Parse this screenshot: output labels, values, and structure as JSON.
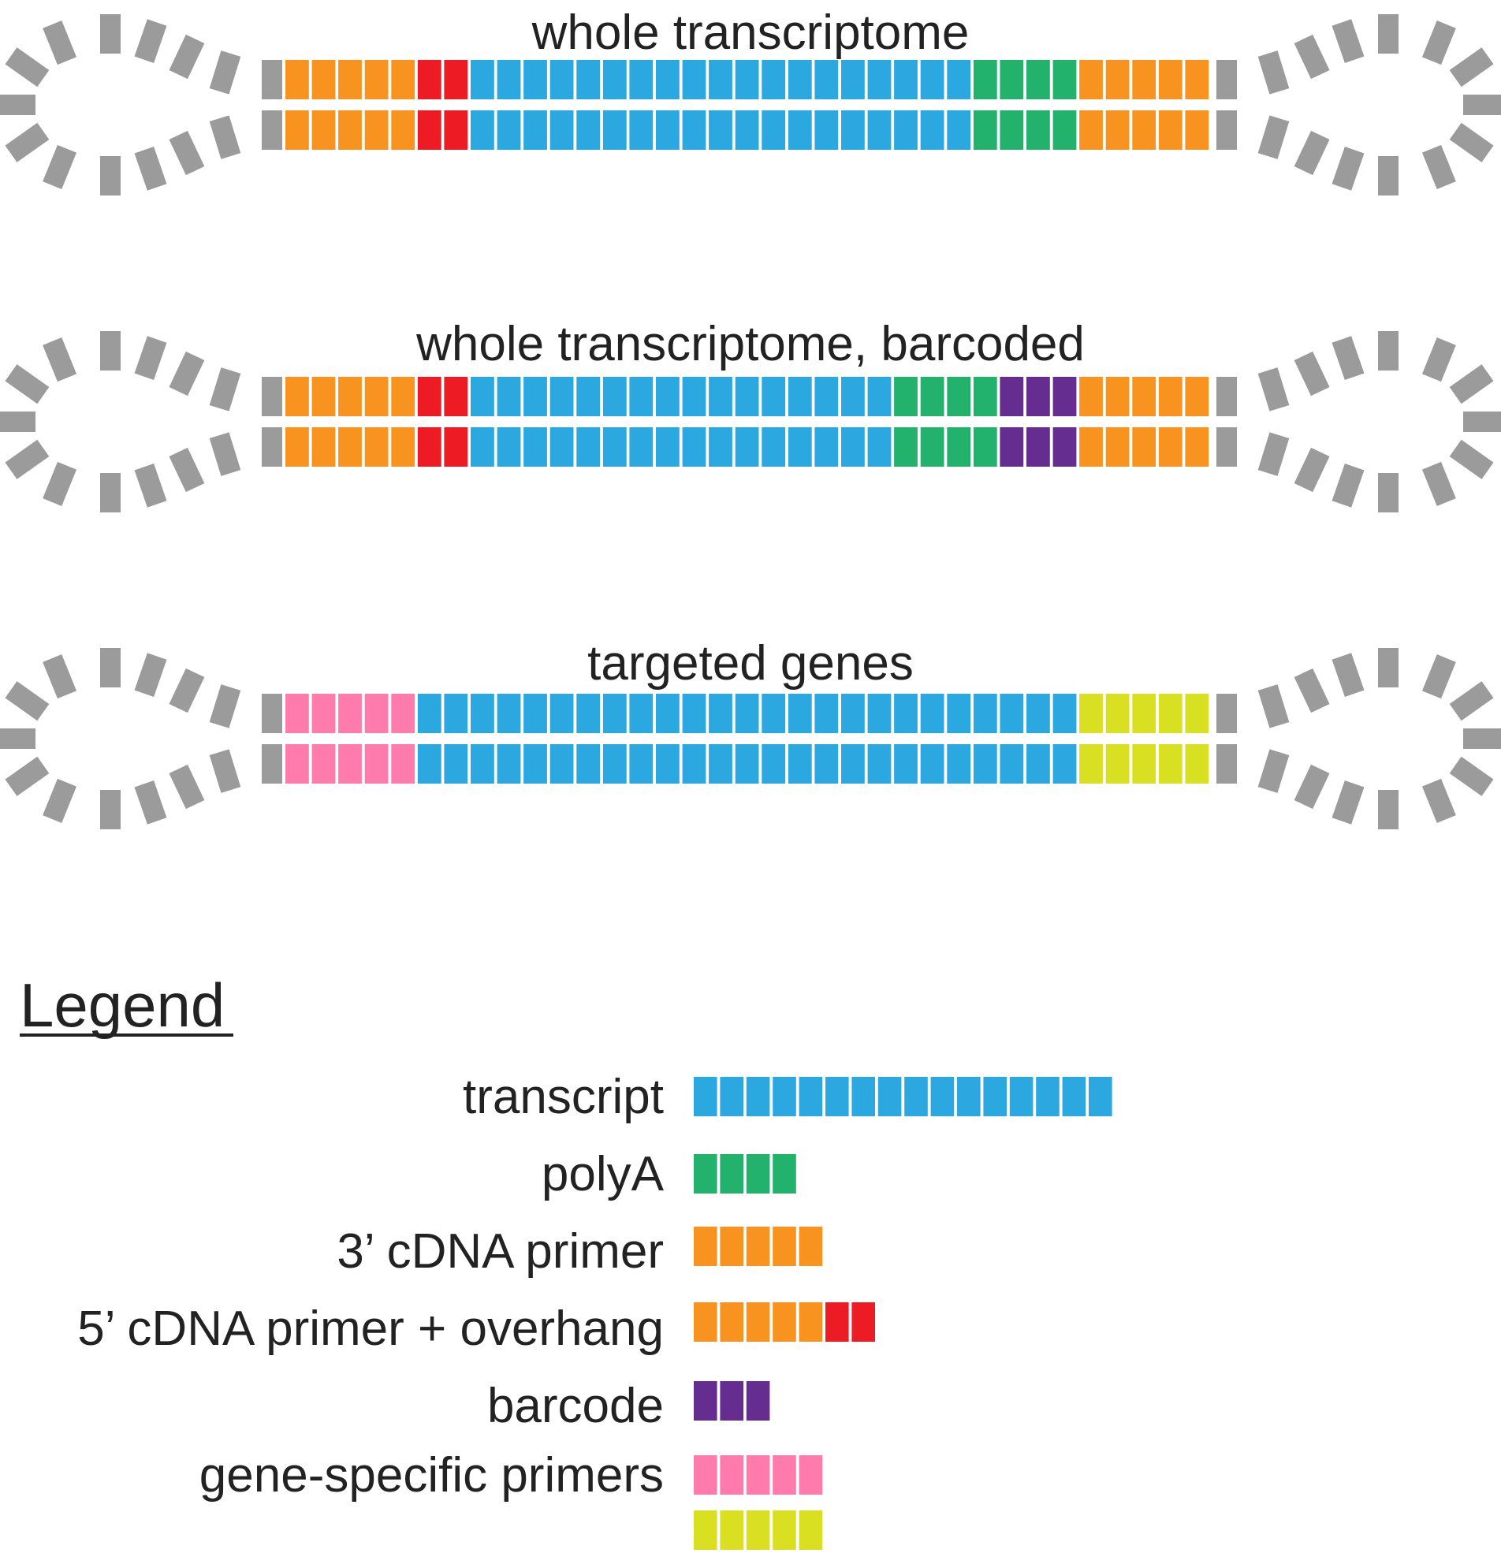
{
  "colors": {
    "backbone": "#9b9b9b",
    "transcript": "#2ba8e0",
    "polyA": "#22b26b",
    "cdna_primer": "#f7931e",
    "overhang": "#ed1c24",
    "barcode": "#662d91",
    "gene_primer_5": "#ff7bac",
    "gene_primer_3": "#d9e021"
  },
  "constructs": [
    {
      "title": "whole transcriptome",
      "segments": [
        {
          "type": "cdna_primer",
          "units": 5
        },
        {
          "type": "overhang",
          "units": 2
        },
        {
          "type": "transcript",
          "units": 19
        },
        {
          "type": "polyA",
          "units": 4
        },
        {
          "type": "cdna_primer",
          "units": 5
        }
      ]
    },
    {
      "title": "whole transcriptome, barcoded",
      "segments": [
        {
          "type": "cdna_primer",
          "units": 5
        },
        {
          "type": "overhang",
          "units": 2
        },
        {
          "type": "transcript",
          "units": 16
        },
        {
          "type": "polyA",
          "units": 4
        },
        {
          "type": "barcode",
          "units": 3
        },
        {
          "type": "cdna_primer",
          "units": 5
        }
      ]
    },
    {
      "title": "targeted genes",
      "segments": [
        {
          "type": "gene_primer_5",
          "units": 5
        },
        {
          "type": "transcript",
          "units": 25
        },
        {
          "type": "gene_primer_3",
          "units": 5
        }
      ]
    }
  ],
  "legend": {
    "title": "Legend",
    "items": [
      {
        "label": "transcript",
        "rows": [
          [
            {
              "type": "transcript",
              "units": 16
            }
          ]
        ]
      },
      {
        "label": "polyA",
        "rows": [
          [
            {
              "type": "polyA",
              "units": 4
            }
          ]
        ]
      },
      {
        "label": "3’ cDNA primer",
        "rows": [
          [
            {
              "type": "cdna_primer",
              "units": 5
            }
          ]
        ]
      },
      {
        "label": "5’ cDNA primer + overhang",
        "rows": [
          [
            {
              "type": "cdna_primer",
              "units": 5
            },
            {
              "type": "overhang",
              "units": 2
            }
          ]
        ]
      },
      {
        "label": "barcode",
        "rows": [
          [
            {
              "type": "barcode",
              "units": 3
            }
          ]
        ]
      },
      {
        "label": "gene-specific primers",
        "rows": [
          [
            {
              "type": "gene_primer_5",
              "units": 5
            }
          ],
          [
            {
              "type": "gene_primer_3",
              "units": 5
            }
          ]
        ]
      }
    ]
  }
}
